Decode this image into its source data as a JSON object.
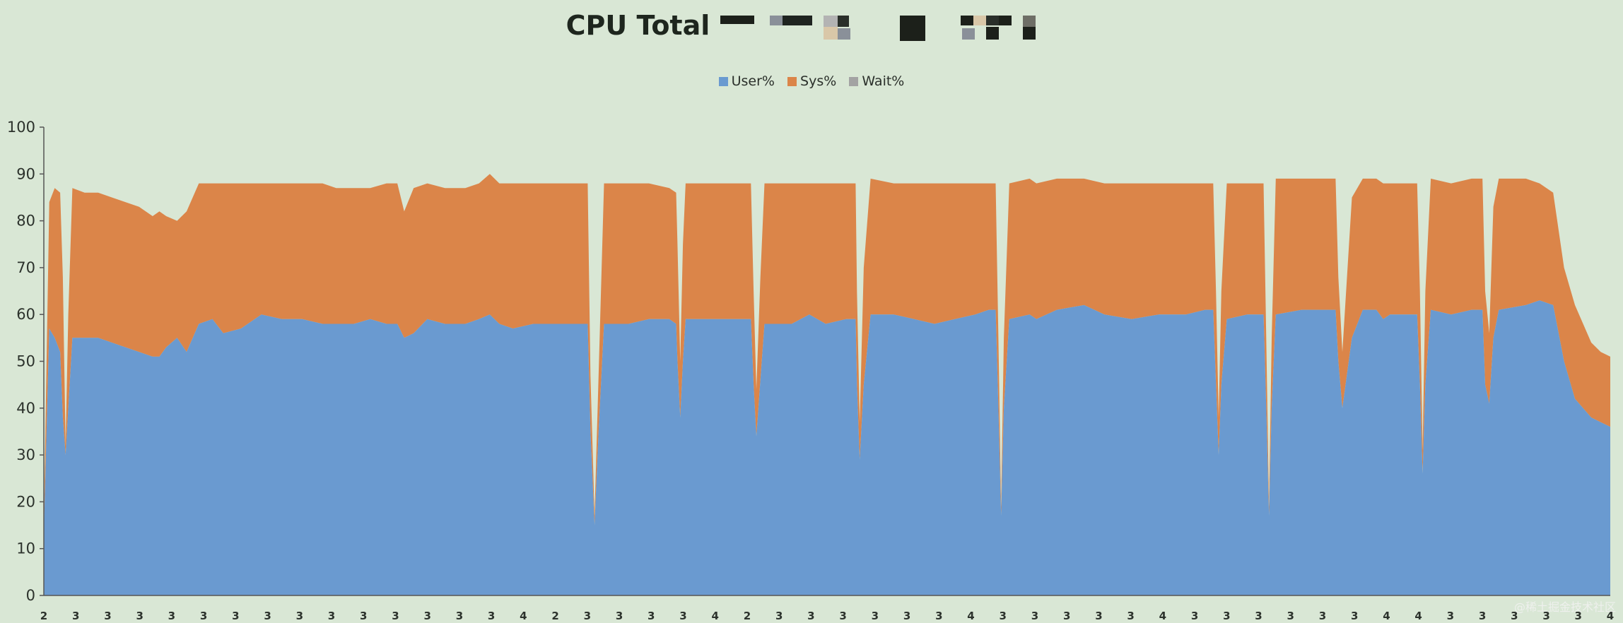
{
  "chart_data": {
    "type": "area",
    "stacked": true,
    "title": "CPU Total",
    "xlabel": "",
    "ylabel": "",
    "ylim": [
      0,
      100
    ],
    "yticks": [
      "0",
      "10",
      "20",
      "30",
      "40",
      "50",
      "60",
      "70",
      "80",
      "90",
      "100"
    ],
    "legend_position": "top",
    "grid": false,
    "series": [
      {
        "name": "User%",
        "color": "#6a9ad0"
      },
      {
        "name": "Sys%",
        "color": "#db8549"
      },
      {
        "name": "Wait%",
        "color": "#a3a3a3"
      }
    ],
    "points": [
      [
        0.0,
        13,
        2
      ],
      [
        0.004,
        57,
        27
      ],
      [
        0.008,
        55,
        32
      ],
      [
        0.012,
        52,
        34
      ],
      [
        0.014,
        38,
        30
      ],
      [
        0.016,
        30,
        2
      ],
      [
        0.018,
        40,
        20
      ],
      [
        0.021,
        55,
        32
      ],
      [
        0.03,
        55,
        31
      ],
      [
        0.04,
        55,
        31
      ],
      [
        0.05,
        54,
        31
      ],
      [
        0.06,
        53,
        31
      ],
      [
        0.07,
        52,
        31
      ],
      [
        0.08,
        51,
        30
      ],
      [
        0.085,
        51,
        31
      ],
      [
        0.09,
        53,
        28
      ],
      [
        0.098,
        55,
        25
      ],
      [
        0.105,
        52,
        30
      ],
      [
        0.114,
        58,
        30
      ],
      [
        0.124,
        59,
        29
      ],
      [
        0.132,
        56,
        32
      ],
      [
        0.145,
        57,
        31
      ],
      [
        0.16,
        60,
        28
      ],
      [
        0.175,
        59,
        29
      ],
      [
        0.19,
        59,
        29
      ],
      [
        0.205,
        58,
        30
      ],
      [
        0.215,
        58,
        29
      ],
      [
        0.228,
        58,
        29
      ],
      [
        0.24,
        59,
        28
      ],
      [
        0.252,
        58,
        30
      ],
      [
        0.26,
        58,
        30
      ],
      [
        0.265,
        55,
        27
      ],
      [
        0.272,
        56,
        31
      ],
      [
        0.282,
        59,
        29
      ],
      [
        0.295,
        58,
        29
      ],
      [
        0.31,
        58,
        29
      ],
      [
        0.32,
        59,
        29
      ],
      [
        0.328,
        60,
        30
      ],
      [
        0.335,
        58,
        30
      ],
      [
        0.345,
        57,
        31
      ],
      [
        0.36,
        58,
        30
      ],
      [
        0.375,
        58,
        30
      ],
      [
        0.39,
        58,
        30
      ],
      [
        0.398,
        58,
        30
      ],
      [
        0.4,
        58,
        30
      ],
      [
        0.402,
        35,
        12
      ],
      [
        0.405,
        15,
        2
      ],
      [
        0.408,
        35,
        12
      ],
      [
        0.412,
        58,
        30
      ],
      [
        0.43,
        58,
        30
      ],
      [
        0.445,
        59,
        29
      ],
      [
        0.46,
        59,
        28
      ],
      [
        0.465,
        58,
        28
      ],
      [
        0.466,
        50,
        25
      ],
      [
        0.468,
        38,
        12
      ],
      [
        0.47,
        50,
        25
      ],
      [
        0.472,
        59,
        29
      ],
      [
        0.49,
        59,
        29
      ],
      [
        0.51,
        59,
        29
      ],
      [
        0.52,
        59,
        29
      ],
      [
        0.522,
        45,
        20
      ],
      [
        0.524,
        34,
        10
      ],
      [
        0.527,
        46,
        22
      ],
      [
        0.53,
        58,
        30
      ],
      [
        0.55,
        58,
        30
      ],
      [
        0.563,
        60,
        28
      ],
      [
        0.575,
        58,
        30
      ],
      [
        0.59,
        59,
        29
      ],
      [
        0.597,
        59,
        29
      ],
      [
        0.598,
        45,
        20
      ],
      [
        0.6,
        29,
        8
      ],
      [
        0.603,
        45,
        25
      ],
      [
        0.608,
        60,
        29
      ],
      [
        0.625,
        60,
        28
      ],
      [
        0.64,
        59,
        29
      ],
      [
        0.655,
        58,
        30
      ],
      [
        0.67,
        59,
        29
      ],
      [
        0.685,
        60,
        28
      ],
      [
        0.695,
        61,
        27
      ],
      [
        0.7,
        61,
        27
      ],
      [
        0.702,
        40,
        15
      ],
      [
        0.704,
        17,
        2
      ],
      [
        0.706,
        40,
        15
      ],
      [
        0.71,
        59,
        29
      ],
      [
        0.725,
        60,
        29
      ],
      [
        0.73,
        59,
        29
      ],
      [
        0.745,
        61,
        28
      ],
      [
        0.765,
        62,
        27
      ],
      [
        0.78,
        60,
        28
      ],
      [
        0.8,
        59,
        29
      ],
      [
        0.82,
        60,
        28
      ],
      [
        0.84,
        60,
        28
      ],
      [
        0.854,
        61,
        27
      ],
      [
        0.86,
        61,
        27
      ],
      [
        0.862,
        45,
        20
      ],
      [
        0.864,
        30,
        8
      ],
      [
        0.866,
        45,
        20
      ],
      [
        0.87,
        59,
        29
      ],
      [
        0.885,
        60,
        28
      ],
      [
        0.897,
        60,
        28
      ],
      [
        0.899,
        40,
        15
      ],
      [
        0.901,
        17,
        2
      ],
      [
        0.903,
        40,
        15
      ],
      [
        0.906,
        60,
        29
      ],
      [
        0.925,
        61,
        28
      ],
      [
        0.94,
        61,
        28
      ],
      [
        0.95,
        61,
        28
      ],
      [
        0.952,
        50,
        18
      ],
      [
        0.955,
        40,
        12
      ],
      [
        0.962,
        55,
        30
      ],
      [
        0.97,
        61,
        28
      ],
      [
        0.98,
        61,
        28
      ],
      [
        0.985,
        59,
        29
      ],
      [
        0.99,
        60,
        28
      ],
      [
        1.0,
        60,
        28
      ],
      [
        1.01,
        60,
        28
      ],
      [
        1.012,
        45,
        20
      ],
      [
        1.014,
        26,
        5
      ],
      [
        1.016,
        45,
        20
      ],
      [
        1.02,
        61,
        28
      ],
      [
        1.035,
        60,
        28
      ],
      [
        1.05,
        61,
        28
      ],
      [
        1.058,
        61,
        28
      ],
      [
        1.06,
        45,
        20
      ],
      [
        1.063,
        41,
        15
      ],
      [
        1.066,
        55,
        28
      ],
      [
        1.07,
        61,
        28
      ],
      [
        1.09,
        62,
        27
      ],
      [
        1.1,
        63,
        25
      ],
      [
        1.11,
        62,
        24
      ],
      [
        1.118,
        50,
        20
      ],
      [
        1.126,
        42,
        20
      ],
      [
        1.138,
        38,
        16
      ],
      [
        1.145,
        37,
        15
      ],
      [
        1.152,
        36,
        15
      ]
    ],
    "x_tick_labels": [
      "2",
      "3",
      "3",
      "3",
      "3",
      "3",
      "3",
      "3",
      "3",
      "3",
      "3",
      "3",
      "3",
      "3",
      "3",
      "4",
      "2",
      "3",
      "3",
      "3",
      "3",
      "4",
      "2",
      "3",
      "3",
      "3",
      "3",
      "3",
      "3",
      "4",
      "3",
      "3",
      "3",
      "3",
      "3",
      "4",
      "3",
      "3",
      "3",
      "3",
      "3",
      "3",
      "4",
      "4",
      "3",
      "3",
      "3",
      "3",
      "3",
      "4"
    ]
  },
  "watermark": "@稀土掘金技术社区"
}
